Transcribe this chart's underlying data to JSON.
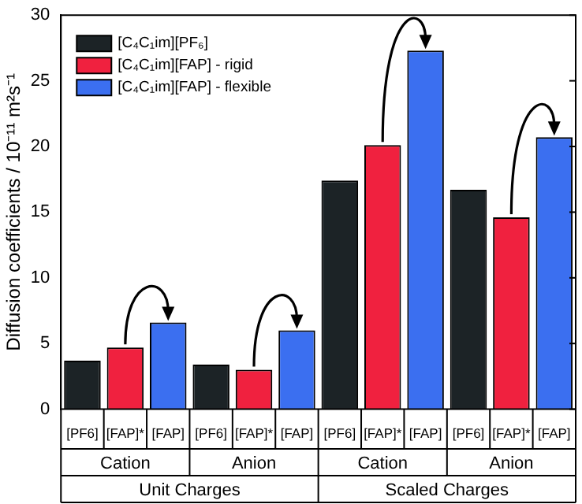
{
  "chart_data": {
    "type": "bar",
    "ylabel": "Diffusion coefficients / 10⁻¹¹ m²s⁻¹",
    "categories": [
      "[PF6]",
      "[FAP]*",
      "[FAP]",
      "[PF6]",
      "[FAP]*",
      "[FAP]",
      "[PF6]",
      "[FAP]*",
      "[FAP]",
      "[PF6]",
      "[FAP]*",
      "[FAP]"
    ],
    "series": [
      {
        "name": "[C₄C₁im][PF₆]",
        "color": "#1c2326",
        "values": [
          3.7,
          null,
          null,
          3.4,
          null,
          null,
          17.4,
          null,
          null,
          16.7,
          null,
          null
        ]
      },
      {
        "name": "[C₄C₁im][FAP] - rigid",
        "color": "#f0213f",
        "values": [
          null,
          4.7,
          null,
          null,
          3.0,
          null,
          null,
          20.1,
          null,
          null,
          14.6,
          null
        ]
      },
      {
        "name": "[C₄C₁im][FAP] - flexible",
        "color": "#3b6ff0",
        "values": [
          null,
          null,
          6.6,
          null,
          null,
          6.0,
          null,
          null,
          27.3,
          null,
          null,
          20.7
        ]
      }
    ],
    "ylim": [
      0,
      30
    ],
    "yticks": [
      0,
      5,
      10,
      15,
      20,
      25,
      30
    ],
    "legend": "top left",
    "annotations": [
      "Cation",
      "Anion",
      "Cation",
      "Anion",
      "Unit Charges",
      "Scaled Charges"
    ]
  }
}
